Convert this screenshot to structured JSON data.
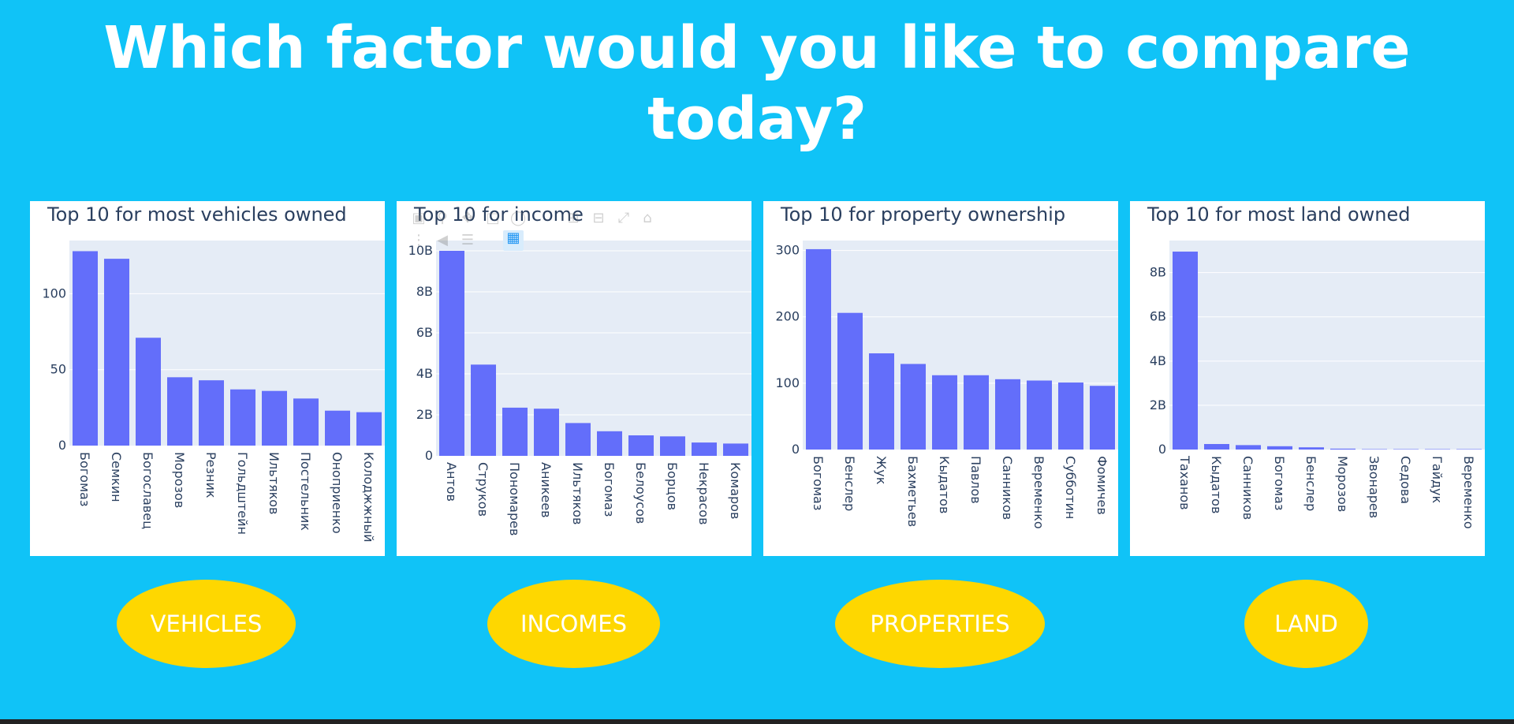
{
  "header": {
    "title": "Which factor would you like to compare today?"
  },
  "buttons": {
    "vehicles": "VEHICLES",
    "incomes": "INCOMES",
    "properties": "PROPERTIES",
    "land": "LAND"
  },
  "colors": {
    "background": "#10c3f7",
    "bar": "#636efa",
    "plot_bg": "#e5ecf6",
    "button": "#fed700",
    "text": "#2a3f5f"
  },
  "chart_data": [
    {
      "type": "bar",
      "title": "Top 10 for most vehicles owned",
      "categories": [
        "Богомаз",
        "Семкин",
        "Богославец",
        "Морозов",
        "Резник",
        "Гольдштейн",
        "Ильтяков",
        "Постельник",
        "Оноприенко",
        "Колоджжный"
      ],
      "values": [
        128,
        123,
        71,
        45,
        43,
        37,
        36,
        31,
        23,
        22
      ],
      "ylim": [
        0,
        135
      ],
      "yticks": [
        0,
        50,
        100
      ],
      "ytick_labels": [
        "0",
        "50",
        "100"
      ],
      "xlabel": "",
      "ylabel": "",
      "grid": true
    },
    {
      "type": "bar",
      "title": "Top 10 for income",
      "categories": [
        "Антов",
        "Струков",
        "Пономарев",
        "Аникеев",
        "Ильтяков",
        "Богомаз",
        "Белоусов",
        "Борцов",
        "Некрасов",
        "Комаров"
      ],
      "values": [
        10000000000,
        4450000000,
        2350000000,
        2300000000,
        1600000000,
        1200000000,
        1000000000,
        950000000,
        650000000,
        600000000
      ],
      "ylim": [
        0,
        10500000000
      ],
      "yticks": [
        0,
        2000000000,
        4000000000,
        6000000000,
        8000000000,
        10000000000
      ],
      "ytick_labels": [
        "0",
        "2B",
        "4B",
        "6B",
        "8B",
        "10B"
      ],
      "xlabel": "",
      "ylabel": "",
      "grid": true
    },
    {
      "type": "bar",
      "title": "Top 10 for property ownership",
      "categories": [
        "Богомаз",
        "Бенслер",
        "Жук",
        "Бахметьев",
        "Кыдатов",
        "Павлов",
        "Санников",
        "Веременко",
        "Субботин",
        "Фомичев"
      ],
      "values": [
        302,
        206,
        145,
        129,
        112,
        112,
        106,
        104,
        101,
        96
      ],
      "ylim": [
        0,
        315
      ],
      "yticks": [
        0,
        100,
        200,
        300
      ],
      "ytick_labels": [
        "0",
        "100",
        "200",
        "300"
      ],
      "xlabel": "",
      "ylabel": "",
      "grid": true
    },
    {
      "type": "bar",
      "title": "Top 10 for most land owned",
      "categories": [
        "Таханов",
        "Кыдатов",
        "Санников",
        "Богомаз",
        "Бенслер",
        "Морозов",
        "Звонарев",
        "Седова",
        "Гайдук",
        "Веременко"
      ],
      "values": [
        8950000000,
        250000000,
        200000000,
        150000000,
        100000000,
        40000000,
        15000000,
        8000000,
        5000000,
        3000000
      ],
      "ylim": [
        0,
        9450000000
      ],
      "yticks": [
        0,
        2000000000,
        4000000000,
        6000000000,
        8000000000
      ],
      "ytick_labels": [
        "0",
        "2B",
        "4B",
        "6B",
        "8B"
      ],
      "xlabel": "",
      "ylabel": "",
      "grid": true
    }
  ]
}
